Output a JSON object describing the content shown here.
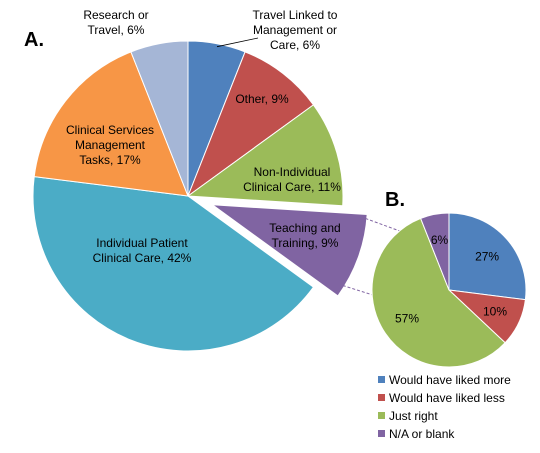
{
  "chart_data": [
    {
      "type": "pie",
      "panel_label": "A.",
      "slices": [
        {
          "label": "Travel Linked to Management or Care, 6%",
          "value": 6,
          "color": "#4f81bd",
          "label_lines": [
            "Travel Linked to",
            "Management or",
            "Care, 6%"
          ]
        },
        {
          "label": "Other, 9%",
          "value": 9,
          "color": "#c0504d",
          "label_lines": [
            "Other, 9%"
          ]
        },
        {
          "label": "Non-Individual Clinical Care, 11%",
          "value": 11,
          "color": "#9bbb59",
          "label_lines": [
            "Non-Individual",
            "Clinical Care, 11%"
          ]
        },
        {
          "label": "Teaching and Training, 9%",
          "value": 9,
          "color": "#8064a2",
          "exploded": true,
          "label_lines": [
            "Teaching and",
            "Training, 9%"
          ]
        },
        {
          "label": "Individual Patient Clinical Care, 42%",
          "value": 42,
          "color": "#4bacc6",
          "label_lines": [
            "Individual Patient",
            "Clinical Care, 42%"
          ]
        },
        {
          "label": "Clinical Services Management Tasks, 17%",
          "value": 17,
          "color": "#f79646",
          "label_lines": [
            "Clinical Services",
            "Management",
            "Tasks, 17%"
          ]
        },
        {
          "label": "Research or Travel, 6%",
          "value": 6,
          "color": "#a5b6d6",
          "label_lines": [
            "Research or",
            "Travel, 6%"
          ]
        }
      ]
    },
    {
      "type": "pie",
      "panel_label": "B.",
      "slices": [
        {
          "label": "Would have liked more",
          "value": 27,
          "data_label": "27%",
          "color": "#4f81bd"
        },
        {
          "label": "Would have liked less",
          "value": 10,
          "data_label": "10%",
          "color": "#c0504d"
        },
        {
          "label": "Just right",
          "value": 57,
          "data_label": "57%",
          "color": "#9bbb59"
        },
        {
          "label": "N/A or blank",
          "value": 6,
          "data_label": "6%",
          "color": "#8064a2"
        }
      ],
      "legend_position": "bottom"
    }
  ]
}
